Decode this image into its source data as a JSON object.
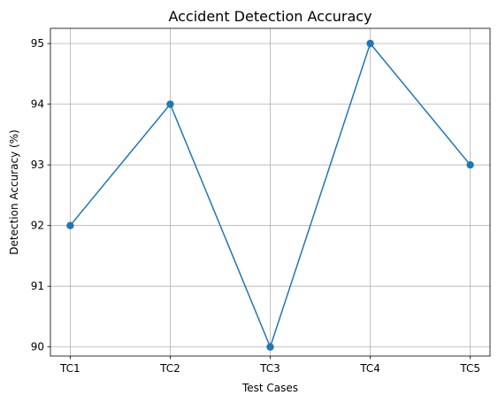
{
  "chart_data": {
    "type": "line",
    "title": "Accident Detection Accuracy",
    "xlabel": "Test Cases",
    "ylabel": "Detection Accuracy (%)",
    "categories": [
      "TC1",
      "TC2",
      "TC3",
      "TC4",
      "TC5"
    ],
    "series": [
      {
        "values": [
          92,
          94,
          90,
          95,
          93
        ],
        "color": "#1f77b4",
        "marker": "circle"
      }
    ],
    "ylim": [
      89.85,
      95.25
    ],
    "yticks": [
      90,
      91,
      92,
      93,
      94,
      95
    ],
    "grid": true,
    "legend": "none"
  }
}
